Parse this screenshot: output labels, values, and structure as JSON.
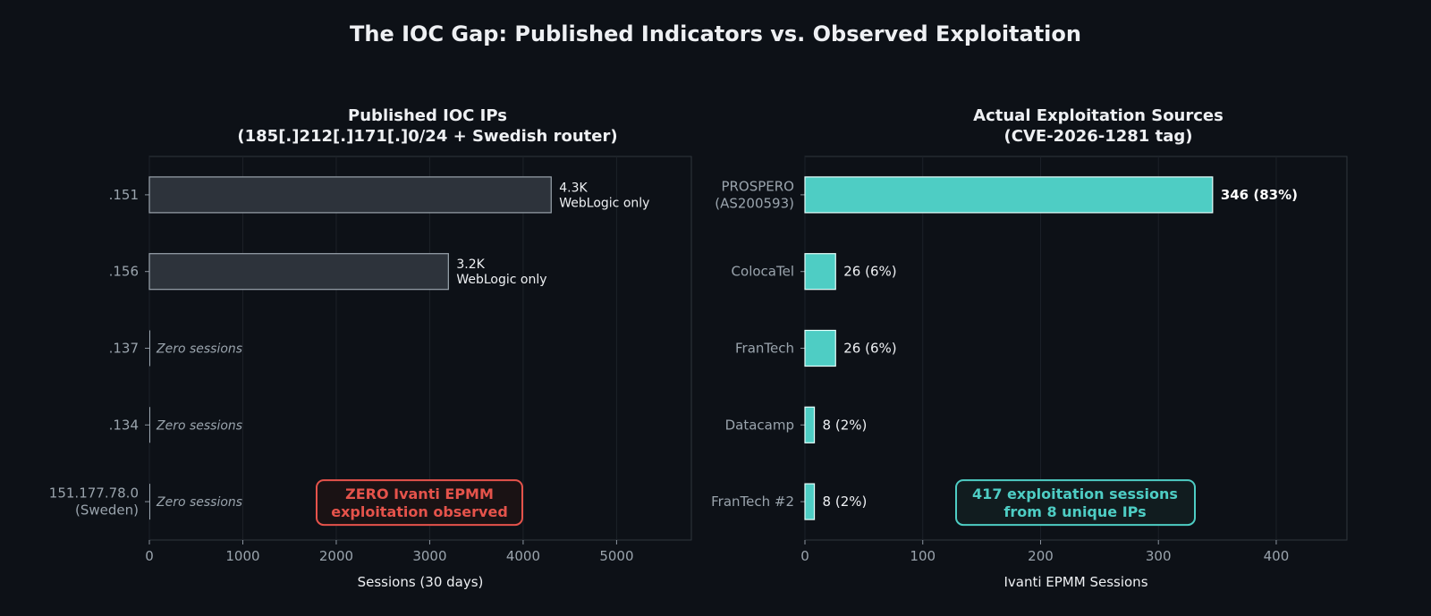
{
  "suptitle": "The IOC Gap: Published Indicators vs. Observed Exploitation",
  "colors": {
    "background": "#0d1117",
    "ioc_bar": "#2d333b",
    "ioc_bar_edge": "#9aa4ad",
    "exploit_bar": "#4ecdc4",
    "exploit_bar_edge": "#e6fffc",
    "alert_red": "#e5534b",
    "accent_teal": "#4ecdc4",
    "text": "#eef0f3",
    "muted_text": "#9aa4ad"
  },
  "chart_data": [
    {
      "type": "bar",
      "orientation": "horizontal",
      "title_lines": [
        "Published IOC IPs",
        "(185[.]212[.]171[.]0/24 + Swedish router)"
      ],
      "categories": [
        ".151",
        ".156",
        ".137",
        ".134",
        "151.177.78.0\n(Sweden)"
      ],
      "values": [
        4300,
        3200,
        0,
        0,
        0
      ],
      "value_labels": [
        "4.3K\nWebLogic only",
        "3.2K\nWebLogic only",
        "Zero sessions",
        "Zero sessions",
        "Zero sessions"
      ],
      "xlabel": "Sessions (30 days)",
      "xlim": [
        0,
        5800
      ],
      "xticks": [
        0,
        1000,
        2000,
        3000,
        4000,
        5000
      ],
      "grid": "x",
      "annotation": "ZERO Ivanti EPMM\nexploitation observed"
    },
    {
      "type": "bar",
      "orientation": "horizontal",
      "title_lines": [
        "Actual Exploitation Sources",
        "(CVE-2026-1281 tag)"
      ],
      "categories": [
        "PROSPERO\n(AS200593)",
        "ColocaTel",
        "FranTech",
        "Datacamp",
        "FranTech #2"
      ],
      "values": [
        346,
        26,
        26,
        8,
        8
      ],
      "value_labels": [
        "346  (83%)",
        "26  (6%)",
        "26  (6%)",
        "8  (2%)",
        "8  (2%)"
      ],
      "xlabel": "Ivanti EPMM Sessions",
      "xlim": [
        0,
        460
      ],
      "xticks": [
        0,
        100,
        200,
        300,
        400
      ],
      "grid": "x",
      "annotation": "417 exploitation sessions\nfrom 8 unique IPs"
    }
  ]
}
